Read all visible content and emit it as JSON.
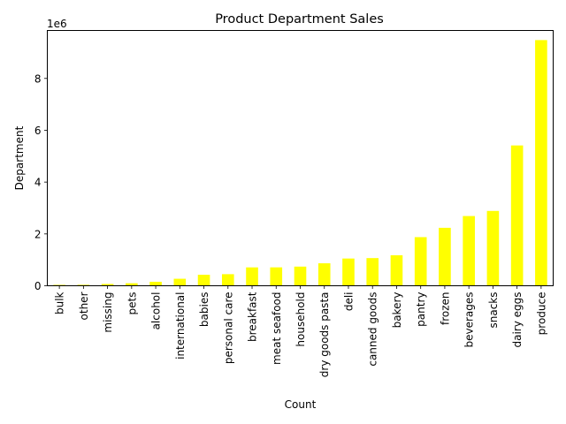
{
  "chart_data": {
    "type": "bar",
    "title": "Product Department Sales",
    "xlabel": "Count",
    "ylabel": "Department",
    "y_offset_label": "1e6",
    "y_scale": 1000000,
    "bar_color": "#ffff00",
    "grid": false,
    "ylim": [
      0,
      9.85
    ],
    "yticks": [
      0,
      2,
      4,
      6,
      8
    ],
    "categories": [
      "bulk",
      "other",
      "missing",
      "pets",
      "alcohol",
      "international",
      "babies",
      "personal care",
      "breakfast",
      "meat seafood",
      "household",
      "dry goods pasta",
      "deli",
      "canned goods",
      "bakery",
      "pantry",
      "frozen",
      "beverages",
      "snacks",
      "dairy eggs",
      "produce"
    ],
    "values": [
      0.035,
      0.038,
      0.069,
      0.097,
      0.154,
      0.27,
      0.424,
      0.447,
      0.709,
      0.71,
      0.739,
      0.867,
      1.051,
      1.068,
      1.176,
      1.876,
      2.236,
      2.69,
      2.887,
      5.414,
      9.479
    ]
  }
}
